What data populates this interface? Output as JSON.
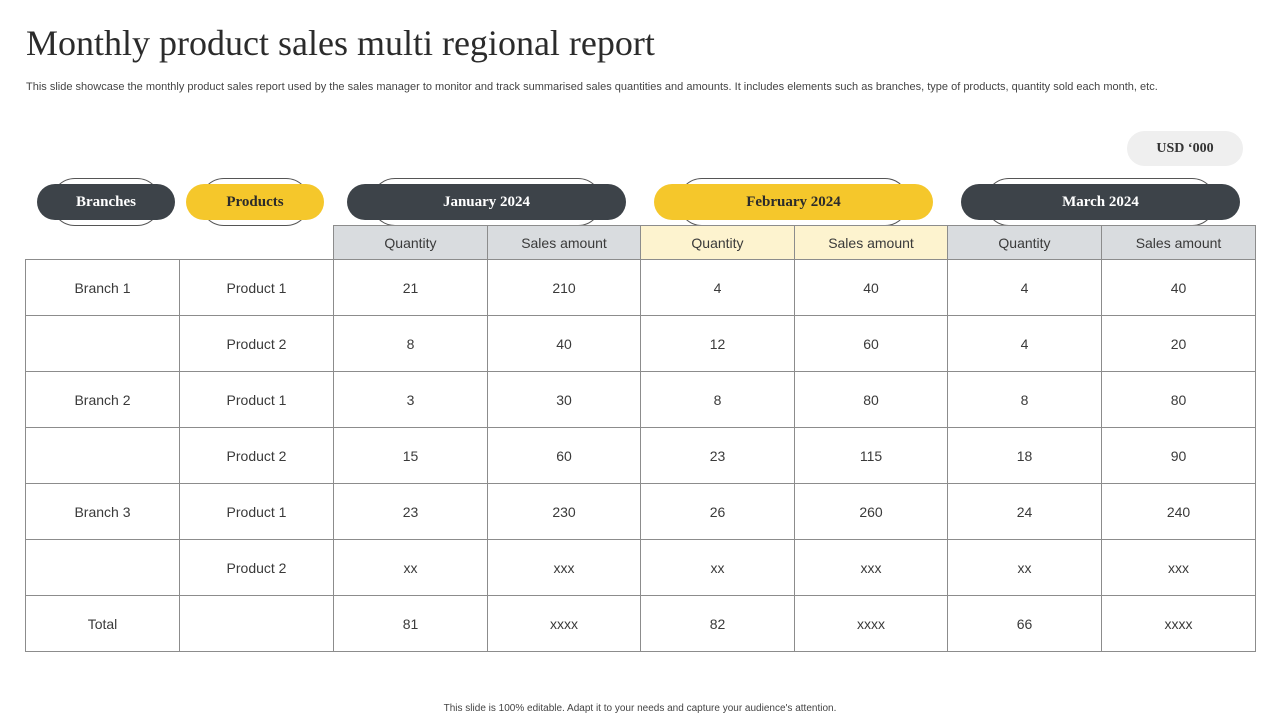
{
  "title": "Monthly product sales multi regional report",
  "subtitle": "This slide showcase the monthly product sales report used by the sales manager to monitor and track summarised sales quantities and amounts. It includes elements such as branches, type of products, quantity sold each month, etc.",
  "unit": "USD ‘000",
  "headers": {
    "branches": "Branches",
    "products": "Products",
    "months": [
      "January  2024",
      "February  2024",
      "March 2024"
    ]
  },
  "subheaders": [
    "Quantity",
    "Sales amount",
    "Quantity",
    "Sales amount",
    "Quantity",
    "Sales amount"
  ],
  "rows": [
    {
      "branch": "Branch 1",
      "product": "Product 1",
      "cells": [
        "21",
        "210",
        "4",
        "40",
        "4",
        "40"
      ]
    },
    {
      "branch": "",
      "product": "Product 2",
      "cells": [
        "8",
        "40",
        "12",
        "60",
        "4",
        "20"
      ]
    },
    {
      "branch": "Branch 2",
      "product": "Product 1",
      "cells": [
        "3",
        "30",
        "8",
        "80",
        "8",
        "80"
      ]
    },
    {
      "branch": "",
      "product": "Product 2",
      "cells": [
        "15",
        "60",
        "23",
        "115",
        "18",
        "90"
      ]
    },
    {
      "branch": "Branch 3",
      "product": "Product 1",
      "cells": [
        "23",
        "230",
        "26",
        "260",
        "24",
        "240"
      ]
    },
    {
      "branch": "",
      "product": "Product 2",
      "cells": [
        "xx",
        "xxx",
        "xx",
        "xxx",
        "xx",
        "xxx"
      ]
    },
    {
      "branch": "Total",
      "product": "",
      "cells": [
        "81",
        "xxxx",
        "82",
        "xxxx",
        "66",
        "xxxx"
      ]
    }
  ],
  "footer": "This slide is 100% editable. Adapt it to your needs and capture your audience's attention.",
  "colors": {
    "dark": "#3d4349",
    "accent": "#f5c72b",
    "header_grey": "#d9dcdf",
    "header_cream": "#fdf3cf"
  }
}
